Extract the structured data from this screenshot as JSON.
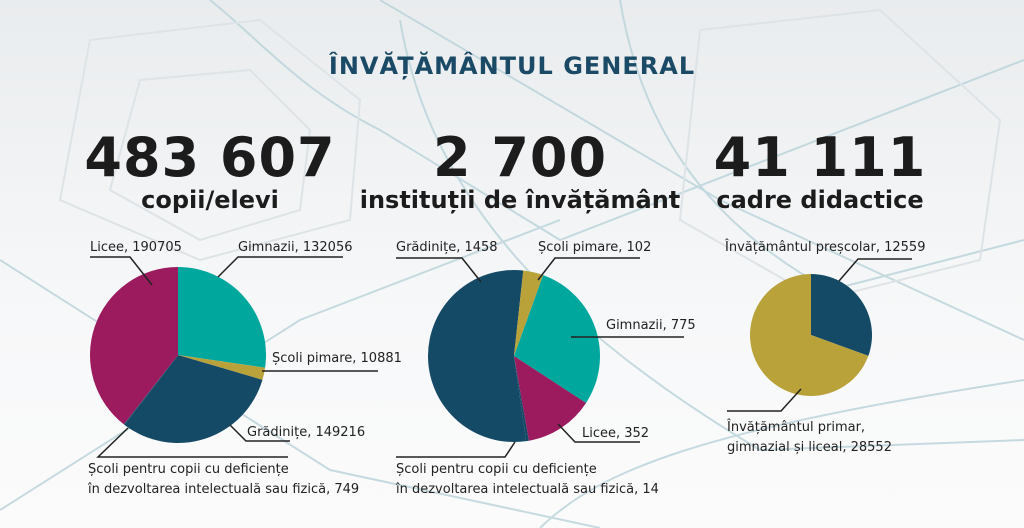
{
  "title": "ÎNVĂȚĂMÂNTUL GENERAL",
  "colors": {
    "teal": "#00a79d",
    "magenta": "#9b1b5e",
    "navy": "#154a66",
    "gold": "#b9a23a"
  },
  "stats": [
    {
      "number": "483 607",
      "label": "copii/elevi"
    },
    {
      "number": "2 700",
      "label": "instituții de învățământ"
    },
    {
      "number": "41 111",
      "label": "cadre didactice"
    }
  ],
  "chart_data": [
    {
      "type": "pie",
      "title": "copii/elevi",
      "slices": [
        {
          "label": "Gimnazii, 132056",
          "name": "Gimnazii",
          "value": 132056,
          "color": "#00a79d"
        },
        {
          "label": "Școli pimare, 10881",
          "name": "Școli pimare",
          "value": 10881,
          "color": "#b9a23a"
        },
        {
          "label": "Grădinițe, 149216",
          "name": "Grădinițe",
          "value": 149216,
          "color": "#154a66"
        },
        {
          "label1": "Școli pentru copii cu deficiențe",
          "label2": "în dezvoltarea intelectuală sau fizică, 749",
          "name": "Școli pentru copii cu deficiențe",
          "value": 749,
          "color": "#154a66"
        },
        {
          "label": "Licee, 190705",
          "name": "Licee",
          "value": 190705,
          "color": "#9b1b5e"
        }
      ]
    },
    {
      "type": "pie",
      "title": "instituții de învățământ",
      "slices": [
        {
          "label1": "Școli pentru copii cu deficiențe",
          "label2": "în dezvoltarea intelectuală sau fizică, 14",
          "name": "Școli pentru copii cu deficiențe",
          "value": 14,
          "color": "#154a66"
        },
        {
          "label": "Grădinițe, 1458",
          "name": "Grădinițe",
          "value": 1458,
          "color": "#154a66"
        },
        {
          "label": "Școli pimare, 102",
          "name": "Școli pimare",
          "value": 102,
          "color": "#b9a23a"
        },
        {
          "label": "Gimnazii, 775",
          "name": "Gimnazii",
          "value": 775,
          "color": "#00a79d"
        },
        {
          "label": "Licee, 352",
          "name": "Licee",
          "value": 352,
          "color": "#9b1b5e"
        }
      ]
    },
    {
      "type": "pie",
      "title": "cadre didactice",
      "slices": [
        {
          "label": "Învățământul preșcolar, 12559",
          "name": "Învățământul preșcolar",
          "value": 12559,
          "color": "#154a66"
        },
        {
          "label1": "Învățământul primar,",
          "label2": "gimnazial și liceal, 28552",
          "name": "Învățământul primar, gimnazial și liceal",
          "value": 28552,
          "color": "#b9a23a"
        }
      ]
    }
  ]
}
